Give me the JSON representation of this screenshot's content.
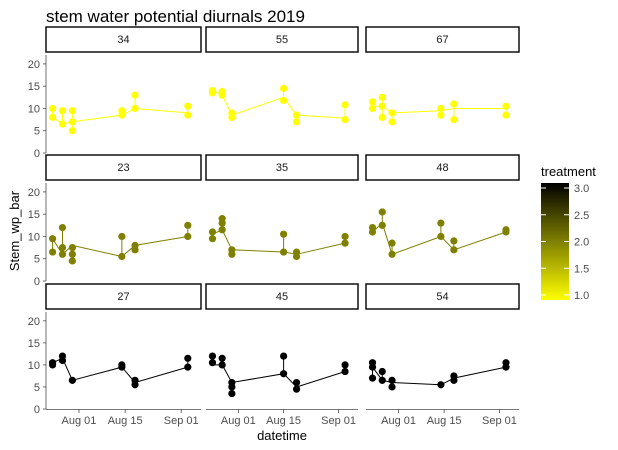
{
  "chart_data": {
    "type": "scatter",
    "title": "stem water potential diurnals 2019",
    "xlabel": "datetime",
    "ylabel": "Stem_wp_bar",
    "ylim": [
      0,
      22
    ],
    "yticks": [
      0,
      5,
      10,
      15,
      20
    ],
    "xlim": [
      "2019-07-22",
      "2019-09-07"
    ],
    "xticks": [
      {
        "date": "2019-08-01",
        "label": "Aug 01"
      },
      {
        "date": "2019-08-15",
        "label": "Aug 15"
      },
      {
        "date": "2019-09-01",
        "label": "Sep 01"
      }
    ],
    "facet_rows": 3,
    "facet_cols": 3,
    "legend": {
      "title": "treatment",
      "position": "right",
      "labels": [
        "3.0",
        "2.5",
        "2.0",
        "1.5",
        "1.0"
      ],
      "range": [
        1,
        3
      ],
      "colors": {
        "low": "#ffff00",
        "high": "#000000"
      }
    },
    "panels": [
      {
        "label": "34",
        "treatment": 1,
        "points": [
          [
            "2019-07-24",
            10.0
          ],
          [
            "2019-07-24",
            8.0
          ],
          [
            "2019-07-27",
            9.5
          ],
          [
            "2019-07-27",
            6.5
          ],
          [
            "2019-07-30",
            9.5
          ],
          [
            "2019-07-30",
            5.0
          ],
          [
            "2019-07-30",
            7.0
          ],
          [
            "2019-08-14",
            9.5
          ],
          [
            "2019-08-14",
            8.5
          ],
          [
            "2019-08-18",
            13.0
          ],
          [
            "2019-08-18",
            10.0
          ],
          [
            "2019-09-03",
            10.5
          ],
          [
            "2019-09-03",
            8.5
          ]
        ],
        "line": [
          [
            "2019-07-24",
            8.0
          ],
          [
            "2019-07-27",
            6.5
          ],
          [
            "2019-07-30",
            7.0
          ],
          [
            "2019-08-14",
            8.5
          ],
          [
            "2019-08-18",
            10.0
          ],
          [
            "2019-09-03",
            9.0
          ]
        ]
      },
      {
        "label": "55",
        "treatment": 1,
        "points": [
          [
            "2019-07-24",
            14.0
          ],
          [
            "2019-07-24",
            13.5
          ],
          [
            "2019-07-27",
            13.0
          ],
          [
            "2019-07-27",
            13.8
          ],
          [
            "2019-07-30",
            8.0
          ],
          [
            "2019-07-30",
            9.0
          ],
          [
            "2019-08-15",
            14.5
          ],
          [
            "2019-08-15",
            11.8
          ],
          [
            "2019-08-19",
            8.5
          ],
          [
            "2019-08-19",
            7.0
          ],
          [
            "2019-09-03",
            10.8
          ],
          [
            "2019-09-03",
            7.5
          ]
        ],
        "line": [
          [
            "2019-07-24",
            14.0
          ],
          [
            "2019-07-27",
            13.0
          ],
          [
            "2019-07-30",
            8.5
          ],
          [
            "2019-08-15",
            12.5
          ],
          [
            "2019-08-19",
            8.5
          ],
          [
            "2019-09-03",
            7.8
          ]
        ]
      },
      {
        "label": "67",
        "treatment": 1,
        "points": [
          [
            "2019-07-24",
            11.5
          ],
          [
            "2019-07-24",
            10.0
          ],
          [
            "2019-07-27",
            12.5
          ],
          [
            "2019-07-27",
            10.5
          ],
          [
            "2019-07-27",
            8.0
          ],
          [
            "2019-07-30",
            9.0
          ],
          [
            "2019-07-30",
            7.0
          ],
          [
            "2019-08-14",
            10.0
          ],
          [
            "2019-08-14",
            8.5
          ],
          [
            "2019-08-18",
            11.0
          ],
          [
            "2019-08-18",
            7.5
          ],
          [
            "2019-09-03",
            10.5
          ],
          [
            "2019-09-03",
            8.5
          ]
        ],
        "line": [
          [
            "2019-07-24",
            10.5
          ],
          [
            "2019-07-27",
            10.5
          ],
          [
            "2019-07-30",
            9.0
          ],
          [
            "2019-08-14",
            9.5
          ],
          [
            "2019-08-18",
            10.0
          ],
          [
            "2019-09-03",
            10.0
          ]
        ]
      },
      {
        "label": "23",
        "treatment": 2,
        "points": [
          [
            "2019-07-24",
            9.5
          ],
          [
            "2019-07-24",
            6.5
          ],
          [
            "2019-07-27",
            12.0
          ],
          [
            "2019-07-27",
            7.5
          ],
          [
            "2019-07-27",
            6.0
          ],
          [
            "2019-07-30",
            7.5
          ],
          [
            "2019-07-30",
            6.0
          ],
          [
            "2019-07-30",
            4.5
          ],
          [
            "2019-08-14",
            10.0
          ],
          [
            "2019-08-14",
            5.5
          ],
          [
            "2019-08-18",
            8.0
          ],
          [
            "2019-08-18",
            7.0
          ],
          [
            "2019-09-03",
            12.5
          ],
          [
            "2019-09-03",
            10.0
          ]
        ],
        "line": [
          [
            "2019-07-24",
            9.5
          ],
          [
            "2019-07-27",
            6.0
          ],
          [
            "2019-07-30",
            8.0
          ],
          [
            "2019-08-14",
            5.5
          ],
          [
            "2019-08-18",
            8.0
          ],
          [
            "2019-09-03",
            10.0
          ]
        ]
      },
      {
        "label": "35",
        "treatment": 2,
        "points": [
          [
            "2019-07-24",
            11.0
          ],
          [
            "2019-07-24",
            9.5
          ],
          [
            "2019-07-27",
            14.0
          ],
          [
            "2019-07-27",
            13.0
          ],
          [
            "2019-07-27",
            11.5
          ],
          [
            "2019-07-30",
            7.0
          ],
          [
            "2019-07-30",
            6.0
          ],
          [
            "2019-08-15",
            10.5
          ],
          [
            "2019-08-15",
            6.5
          ],
          [
            "2019-08-19",
            6.5
          ],
          [
            "2019-08-19",
            5.5
          ],
          [
            "2019-09-03",
            10.0
          ],
          [
            "2019-09-03",
            8.5
          ]
        ],
        "line": [
          [
            "2019-07-24",
            10.5
          ],
          [
            "2019-07-27",
            11.5
          ],
          [
            "2019-07-30",
            7.0
          ],
          [
            "2019-08-15",
            6.5
          ],
          [
            "2019-08-19",
            6.0
          ],
          [
            "2019-09-03",
            8.5
          ]
        ]
      },
      {
        "label": "48",
        "treatment": 2,
        "points": [
          [
            "2019-07-24",
            12.0
          ],
          [
            "2019-07-24",
            11.0
          ],
          [
            "2019-07-27",
            15.5
          ],
          [
            "2019-07-27",
            12.5
          ],
          [
            "2019-07-30",
            8.5
          ],
          [
            "2019-07-30",
            6.0
          ],
          [
            "2019-08-14",
            13.0
          ],
          [
            "2019-08-14",
            10.0
          ],
          [
            "2019-08-18",
            9.0
          ],
          [
            "2019-08-18",
            7.0
          ],
          [
            "2019-09-03",
            11.5
          ],
          [
            "2019-09-03",
            11.0
          ]
        ],
        "line": [
          [
            "2019-07-24",
            11.0
          ],
          [
            "2019-07-27",
            13.0
          ],
          [
            "2019-07-30",
            6.0
          ],
          [
            "2019-08-14",
            10.0
          ],
          [
            "2019-08-18",
            7.0
          ],
          [
            "2019-09-03",
            11.0
          ]
        ]
      },
      {
        "label": "27",
        "treatment": 3,
        "points": [
          [
            "2019-07-24",
            10.5
          ],
          [
            "2019-07-24",
            10.0
          ],
          [
            "2019-07-27",
            12.0
          ],
          [
            "2019-07-27",
            11.0
          ],
          [
            "2019-07-30",
            6.5
          ],
          [
            "2019-08-14",
            10.0
          ],
          [
            "2019-08-14",
            9.5
          ],
          [
            "2019-08-18",
            6.5
          ],
          [
            "2019-08-18",
            5.5
          ],
          [
            "2019-09-03",
            11.5
          ],
          [
            "2019-09-03",
            9.5
          ]
        ],
        "line": [
          [
            "2019-07-24",
            10.5
          ],
          [
            "2019-07-27",
            11.5
          ],
          [
            "2019-07-30",
            6.5
          ],
          [
            "2019-08-14",
            9.5
          ],
          [
            "2019-08-18",
            6.0
          ],
          [
            "2019-09-03",
            9.5
          ]
        ]
      },
      {
        "label": "45",
        "treatment": 3,
        "points": [
          [
            "2019-07-24",
            12.0
          ],
          [
            "2019-07-24",
            10.5
          ],
          [
            "2019-07-27",
            11.5
          ],
          [
            "2019-07-27",
            10.0
          ],
          [
            "2019-07-30",
            6.0
          ],
          [
            "2019-07-30",
            5.0
          ],
          [
            "2019-07-30",
            3.5
          ],
          [
            "2019-08-15",
            12.0
          ],
          [
            "2019-08-15",
            8.0
          ],
          [
            "2019-08-19",
            6.0
          ],
          [
            "2019-08-19",
            4.5
          ],
          [
            "2019-09-03",
            10.0
          ],
          [
            "2019-09-03",
            8.5
          ]
        ],
        "line": [
          [
            "2019-07-24",
            10.0
          ],
          [
            "2019-07-27",
            10.0
          ],
          [
            "2019-07-30",
            6.0
          ],
          [
            "2019-08-15",
            8.0
          ],
          [
            "2019-08-19",
            5.0
          ],
          [
            "2019-09-03",
            8.5
          ]
        ]
      },
      {
        "label": "54",
        "treatment": 3,
        "points": [
          [
            "2019-07-24",
            10.5
          ],
          [
            "2019-07-24",
            9.5
          ],
          [
            "2019-07-24",
            7.0
          ],
          [
            "2019-07-27",
            8.5
          ],
          [
            "2019-07-27",
            6.5
          ],
          [
            "2019-07-30",
            6.5
          ],
          [
            "2019-07-30",
            5.0
          ],
          [
            "2019-08-14",
            5.5
          ],
          [
            "2019-08-18",
            7.5
          ],
          [
            "2019-08-18",
            6.5
          ],
          [
            "2019-09-03",
            10.5
          ],
          [
            "2019-09-03",
            9.5
          ]
        ],
        "line": [
          [
            "2019-07-24",
            9.5
          ],
          [
            "2019-07-27",
            6.5
          ],
          [
            "2019-07-30",
            6.0
          ],
          [
            "2019-08-14",
            5.5
          ],
          [
            "2019-08-18",
            7.0
          ],
          [
            "2019-09-03",
            9.5
          ]
        ]
      }
    ]
  }
}
